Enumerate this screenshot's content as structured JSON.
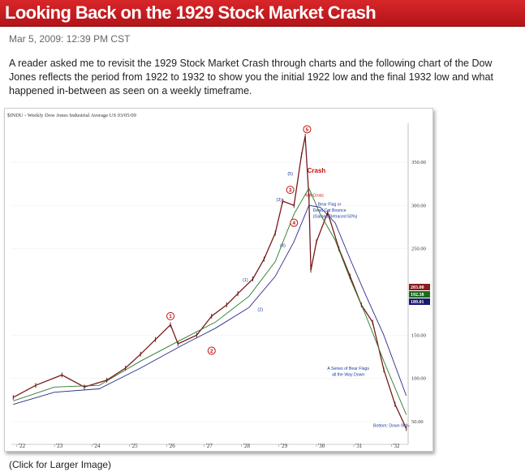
{
  "header": {
    "title": "Looking Back on the 1929 Stock Market Crash"
  },
  "post": {
    "date": "Mar 5, 2009: 12:39 PM CST",
    "intro": "A reader asked me to revisit the 1929 Stock Market Crash through charts and the following chart of the Dow Jones reflects the period from 1922 to 1932 to show you the initial 1922 low and the final 1932 low and what happened in-between as seen on a weekly timeframe.",
    "caption": "(Click for Larger Image)"
  },
  "chart_data": {
    "type": "line",
    "title": "$INDU - Weekly  Dow Jones Industrial Average  US  03/05/09",
    "x_tick_labels": [
      "'22",
      "'23",
      "'24",
      "'25",
      "'26",
      "'27",
      "'28",
      "'29",
      "'30",
      "'31",
      "'32"
    ],
    "y_tick_labels": [
      "350.00",
      "300.00",
      "250.00",
      "150.00",
      "100.00",
      "50.00"
    ],
    "y_ticks": [
      350,
      300,
      250,
      150,
      100,
      50
    ],
    "ylim": [
      35,
      395
    ],
    "price_tags": [
      {
        "label": "203.00",
        "color": "#8b1a1a"
      },
      {
        "label": "192.38",
        "color": "#1a6b1a"
      },
      {
        "label": "189.01",
        "color": "#1a1a6b"
      }
    ],
    "series": [
      {
        "name": "price",
        "color": "#7a1a1a",
        "x": [
          1921.9,
          1922.5,
          1923.2,
          1923.8,
          1924.4,
          1924.9,
          1925.3,
          1925.7,
          1926.1,
          1926.3,
          1926.8,
          1927.2,
          1927.6,
          1927.9,
          1928.3,
          1928.6,
          1928.9,
          1929.1,
          1929.4,
          1929.6,
          1929.7,
          1929.8,
          1929.85,
          1930.0,
          1930.3,
          1930.6,
          1930.9,
          1931.2,
          1931.5,
          1931.8,
          1932.1,
          1932.4
        ],
        "y": [
          78,
          92,
          104,
          90,
          98,
          112,
          128,
          145,
          162,
          140,
          150,
          172,
          185,
          198,
          215,
          238,
          268,
          305,
          300,
          358,
          380,
          310,
          225,
          258,
          292,
          250,
          218,
          185,
          165,
          110,
          70,
          42
        ]
      },
      {
        "name": "moving-average-fast",
        "color": "#2a7a2a",
        "x": [
          1921.9,
          1923.0,
          1924.2,
          1925.3,
          1926.4,
          1927.3,
          1928.2,
          1928.9,
          1929.4,
          1929.8,
          1930.1,
          1930.5,
          1930.9,
          1931.3,
          1931.8,
          1932.4
        ],
        "y": [
          74,
          90,
          92,
          120,
          145,
          165,
          195,
          235,
          290,
          320,
          290,
          260,
          215,
          175,
          120,
          58
        ]
      },
      {
        "name": "moving-average-slow",
        "color": "#2a2a8a",
        "x": [
          1921.9,
          1923.0,
          1924.2,
          1925.3,
          1926.4,
          1927.3,
          1928.2,
          1928.9,
          1929.4,
          1929.8,
          1930.1,
          1930.5,
          1930.9,
          1931.3,
          1931.8,
          1932.4
        ],
        "y": [
          70,
          84,
          88,
          112,
          138,
          158,
          182,
          218,
          258,
          300,
          298,
          280,
          238,
          198,
          150,
          80
        ]
      }
    ],
    "circled_labels": [
      {
        "text": "1",
        "x": 1926.1,
        "y": 172
      },
      {
        "text": "2",
        "x": 1927.2,
        "y": 132
      },
      {
        "text": "3",
        "x": 1929.3,
        "y": 318
      },
      {
        "text": "4",
        "x": 1929.4,
        "y": 280
      },
      {
        "text": "5",
        "x": 1929.75,
        "y": 388
      }
    ],
    "wave_labels": [
      {
        "text": "(1)",
        "x": 1928.1,
        "y": 212
      },
      {
        "text": "(2)",
        "x": 1928.5,
        "y": 178
      },
      {
        "text": "(3)",
        "x": 1929.0,
        "y": 305
      },
      {
        "text": "(4)",
        "x": 1929.1,
        "y": 252
      },
      {
        "text": "(5)",
        "x": 1929.3,
        "y": 335
      }
    ],
    "annotations": [
      {
        "text": "Crash",
        "x": 1930.0,
        "y": 338,
        "color": "#c01010"
      },
      {
        "text": "MA Cross",
        "x": 1929.95,
        "y": 310,
        "color": "#c01010"
      },
      {
        "text": "Bear Flag or",
        "x": 1930.35,
        "y": 300,
        "color": "#1a3a9a"
      },
      {
        "text": "Dead Cat Bounce",
        "x": 1930.35,
        "y": 293,
        "color": "#1a3a9a"
      },
      {
        "text": "(Gained/Retraced 50%)",
        "x": 1930.5,
        "y": 286,
        "color": "#1a3a9a"
      },
      {
        "text": "A Series of Bear Flags",
        "x": 1930.85,
        "y": 110,
        "color": "#1a3a9a"
      },
      {
        "text": "all the Way Down",
        "x": 1930.85,
        "y": 103,
        "color": "#1a3a9a"
      },
      {
        "text": "Bottom:  Down 90%",
        "x": 1932.0,
        "y": 44,
        "color": "#1a3a9a"
      }
    ]
  }
}
